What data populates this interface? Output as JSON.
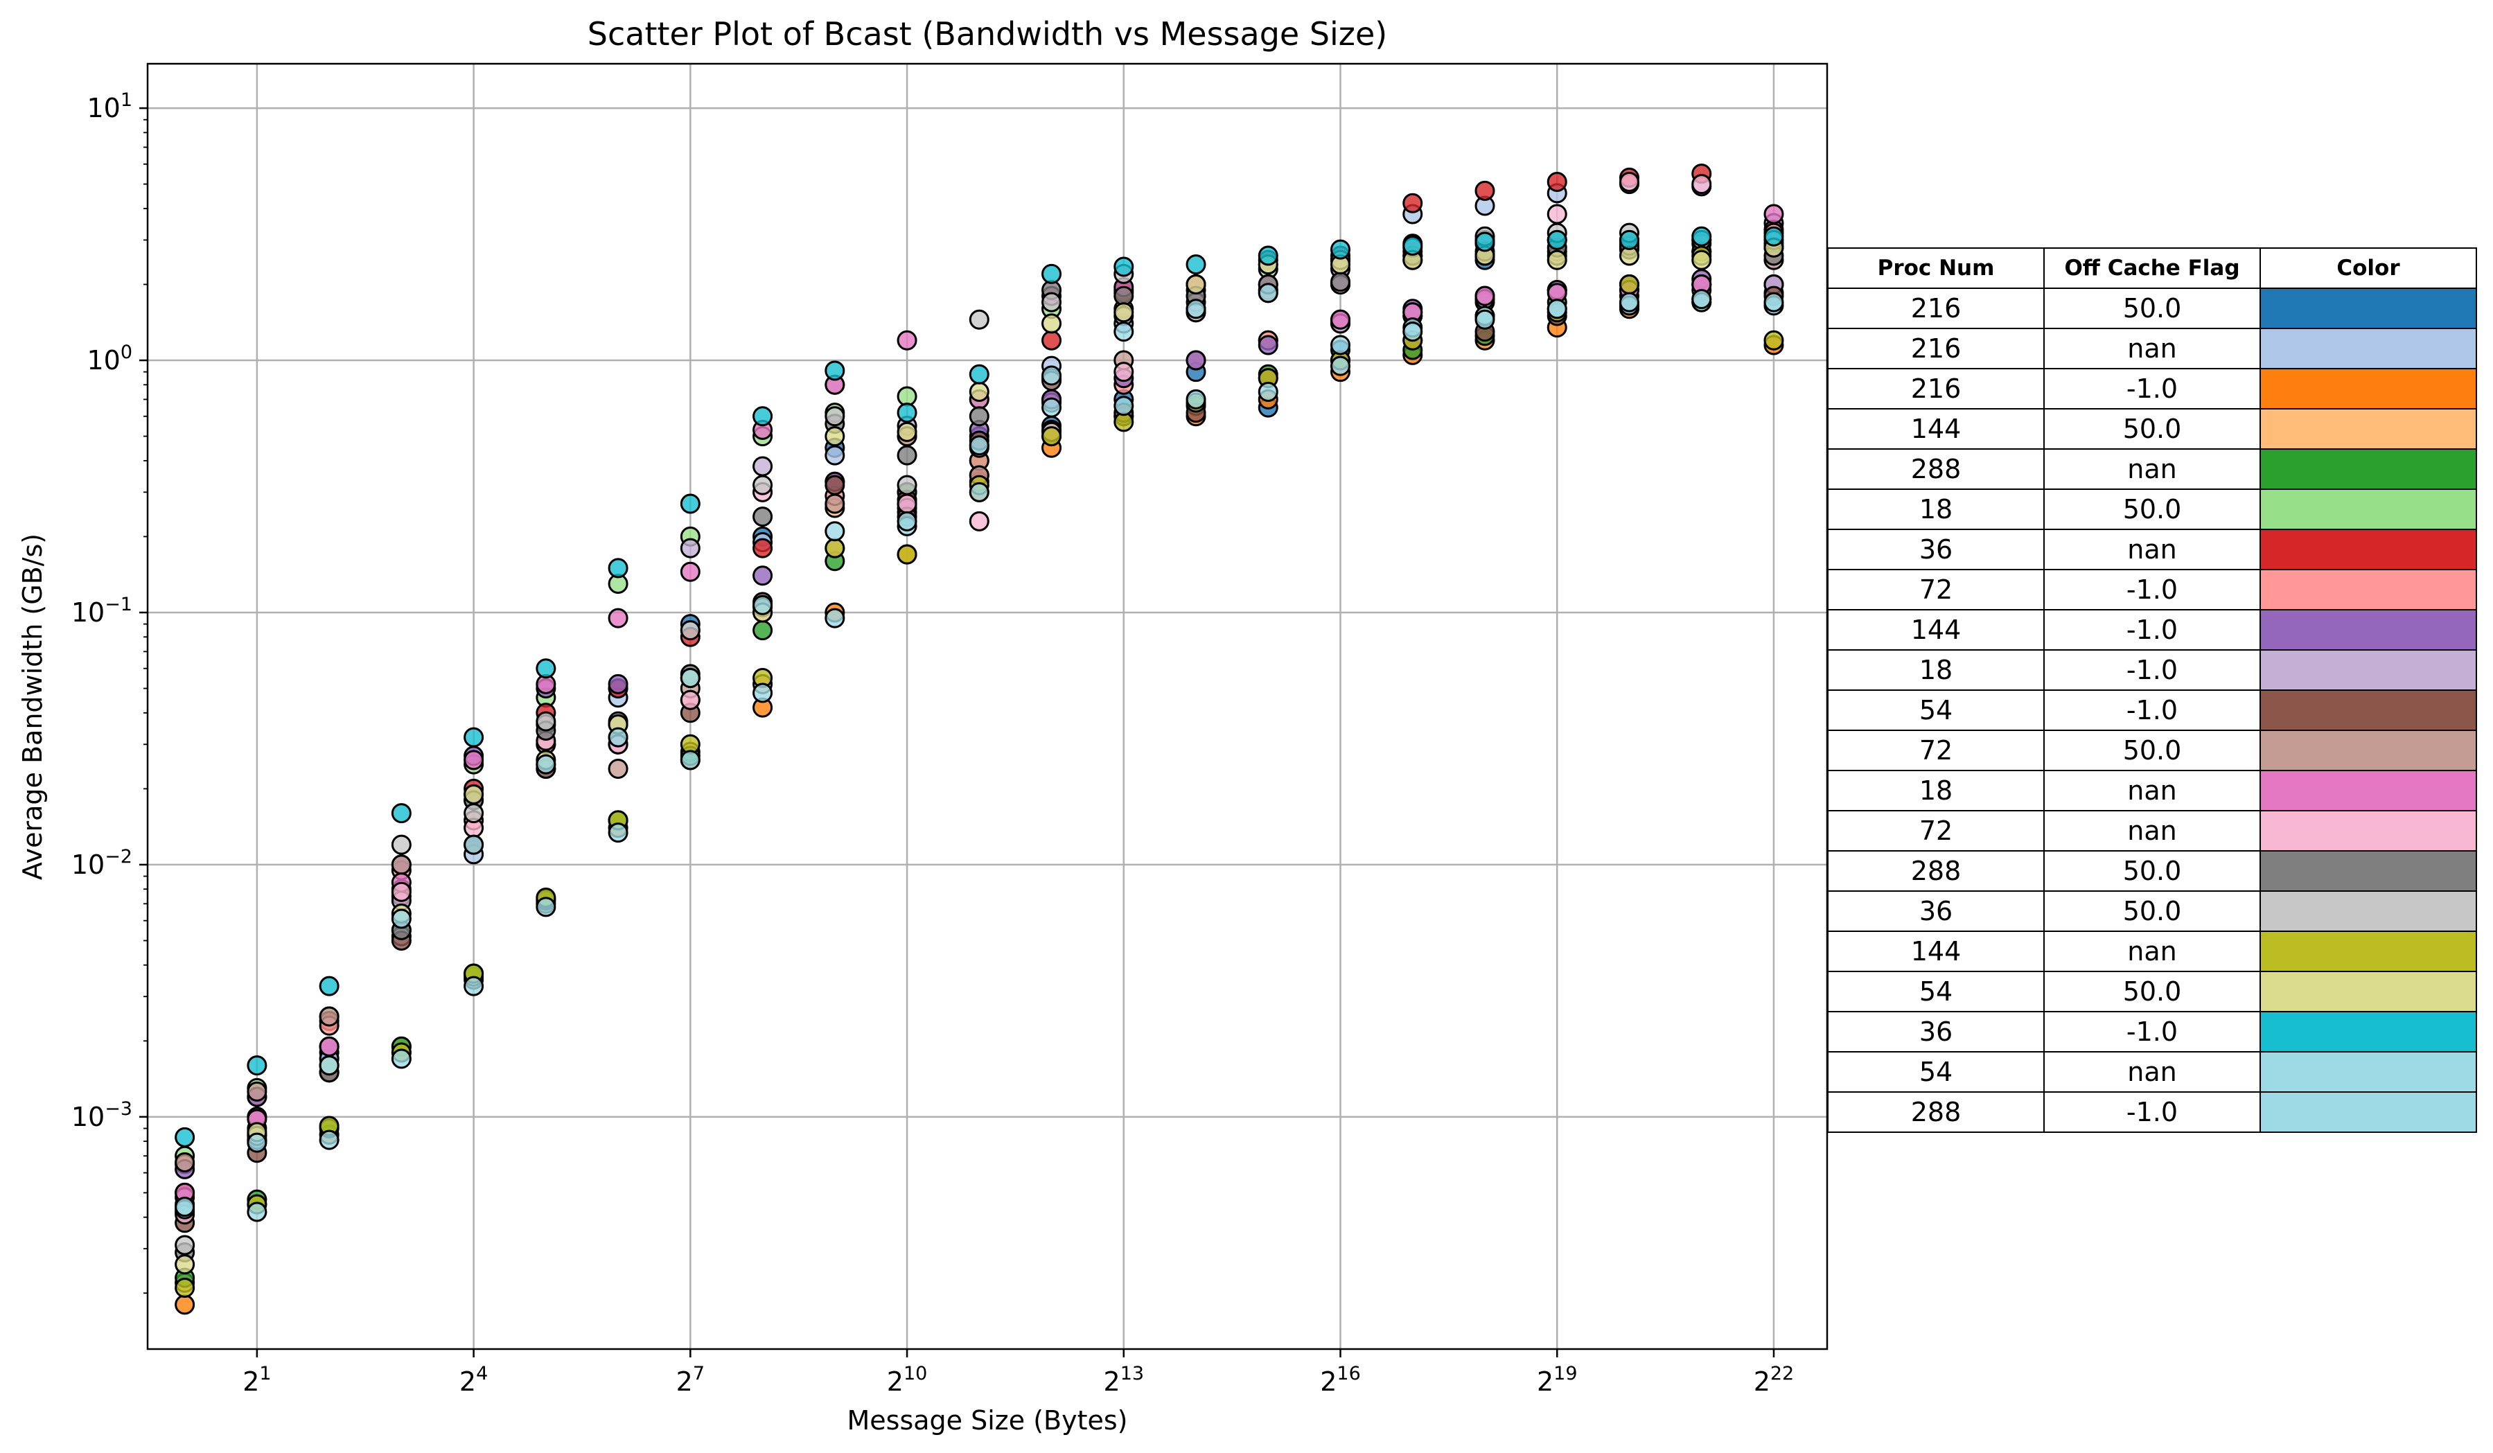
{
  "chart_data": {
    "type": "scatter",
    "title": "Scatter Plot of Bcast (Bandwidth vs Message Size)",
    "xlabel": "Message Size (Bytes)",
    "ylabel": "Average Bandwidth (GB/s)",
    "xscale": "log2",
    "yscale": "log10",
    "xlim": [
      0.7,
      7000000
    ],
    "ylim": [
      0.00012,
      15
    ],
    "grid": true,
    "x_ticks": [
      {
        "value": 2,
        "base": "2",
        "exp": "1"
      },
      {
        "value": 16,
        "base": "2",
        "exp": "4"
      },
      {
        "value": 128,
        "base": "2",
        "exp": "7"
      },
      {
        "value": 1024,
        "base": "2",
        "exp": "10"
      },
      {
        "value": 8192,
        "base": "2",
        "exp": "13"
      },
      {
        "value": 65536,
        "base": "2",
        "exp": "16"
      },
      {
        "value": 524288,
        "base": "2",
        "exp": "19"
      },
      {
        "value": 4194304,
        "base": "2",
        "exp": "22"
      }
    ],
    "y_ticks": [
      {
        "value": 0.001,
        "base": "10",
        "exp": "−3"
      },
      {
        "value": 0.01,
        "base": "10",
        "exp": "−2"
      },
      {
        "value": 0.1,
        "base": "10",
        "exp": "−1"
      },
      {
        "value": 1,
        "base": "10",
        "exp": "0"
      },
      {
        "value": 10,
        "base": "10",
        "exp": "1"
      }
    ],
    "x": [
      1,
      2,
      4,
      8,
      16,
      32,
      64,
      128,
      256,
      512,
      1024,
      2048,
      4096,
      8192,
      16384,
      32768,
      65536,
      131072,
      262144,
      524288,
      1048576,
      2097152,
      4194304
    ],
    "legend_placement": "right-table",
    "series": [
      {
        "name": "216 / 50.0",
        "color": "#1f77b4",
        "y": [
          0.00045,
          0.0009,
          0.0018,
          0.0055,
          0.012,
          0.025,
          0.05,
          0.09,
          0.2,
          0.45,
          0.25,
          0.5,
          0.55,
          0.7,
          0.9,
          0.65,
          1.1,
          1.5,
          2.5,
          3.0,
          2.9,
          3.0,
          2.8
        ]
      },
      {
        "name": "216 / nan",
        "color": "#aec7e8",
        "y": [
          0.00042,
          0.00085,
          0.0017,
          0.0052,
          0.011,
          0.024,
          0.046,
          0.085,
          0.19,
          0.42,
          0.3,
          0.46,
          0.95,
          1.4,
          1.8,
          1.9,
          2.0,
          3.8,
          4.1,
          4.6,
          5.0,
          4.9,
          3.5
        ]
      },
      {
        "name": "216 / -1.0",
        "color": "#ff7f0e",
        "y": [
          0.00018,
          0.00045,
          0.00085,
          0.0018,
          0.0035,
          0.007,
          0.014,
          0.026,
          0.042,
          0.1,
          0.17,
          0.3,
          0.45,
          0.6,
          0.6,
          0.7,
          0.9,
          1.05,
          1.2,
          1.35,
          1.6,
          1.7,
          1.15
        ]
      },
      {
        "name": "144 / 50.0",
        "color": "#ffbb78",
        "y": [
          0.00022,
          0.0008,
          0.0015,
          0.0019,
          0.0036,
          0.0072,
          0.015,
          0.028,
          0.052,
          0.26,
          0.5,
          0.33,
          0.7,
          1.6,
          2.0,
          1.2,
          2.5,
          2.6,
          2.6,
          2.7,
          2.8,
          2.7,
          2.8
        ]
      },
      {
        "name": "288 / nan",
        "color": "#2ca02c",
        "y": [
          0.00023,
          0.00047,
          0.0009,
          0.0019,
          0.0037,
          0.0073,
          0.015,
          0.027,
          0.085,
          0.16,
          0.3,
          0.4,
          0.53,
          0.6,
          0.66,
          0.88,
          1.0,
          1.1,
          1.25,
          1.7,
          1.8,
          1.9,
          1.85
        ]
      },
      {
        "name": "18 / 50.0",
        "color": "#98df8a",
        "y": [
          0.0007,
          0.0013,
          0.0025,
          0.008,
          0.025,
          0.046,
          0.13,
          0.2,
          0.5,
          0.62,
          0.72,
          0.7,
          1.6,
          1.9,
          1.9,
          2.3,
          2.5,
          2.7,
          2.9,
          3.0,
          3.0,
          2.9,
          2.9
        ]
      },
      {
        "name": "36 / nan",
        "color": "#d62728",
        "y": [
          0.0005,
          0.001,
          0.0024,
          0.0075,
          0.02,
          0.04,
          0.05,
          0.08,
          0.18,
          0.33,
          0.28,
          0.35,
          1.2,
          1.85,
          2.0,
          2.5,
          2.6,
          4.2,
          4.7,
          5.1,
          5.3,
          5.5,
          3.3
        ]
      },
      {
        "name": "72 / -1.0",
        "color": "#ff9896",
        "y": [
          0.00065,
          0.0012,
          0.0023,
          0.0095,
          0.015,
          0.03,
          0.03,
          0.045,
          0.1,
          0.29,
          0.27,
          0.4,
          0.68,
          0.8,
          1.0,
          1.2,
          1.4,
          1.5,
          1.7,
          1.9,
          2.0,
          2.0,
          2.0
        ]
      },
      {
        "name": "144 / -1.0",
        "color": "#9467bd",
        "y": [
          0.00062,
          0.0012,
          0.0019,
          0.01,
          0.027,
          0.05,
          0.052,
          0.055,
          0.14,
          0.33,
          0.26,
          0.53,
          0.7,
          0.85,
          1.0,
          1.15,
          1.45,
          1.6,
          1.8,
          1.9,
          2.0,
          2.1,
          2.0
        ]
      },
      {
        "name": "18 / -1.0",
        "color": "#c5b0d5",
        "y": [
          0.00048,
          0.001,
          0.0019,
          0.0072,
          0.018,
          0.036,
          0.03,
          0.18,
          0.38,
          0.8,
          0.55,
          0.45,
          0.85,
          1.5,
          1.6,
          1.9,
          1.4,
          1.55,
          1.75,
          1.9,
          1.9,
          2.0,
          2.0
        ]
      },
      {
        "name": "54 / -1.0",
        "color": "#8c564b",
        "y": [
          0.00038,
          0.00072,
          0.0015,
          0.005,
          0.012,
          0.024,
          0.032,
          0.04,
          0.11,
          0.32,
          0.24,
          0.48,
          0.5,
          0.62,
          0.62,
          0.85,
          1.0,
          1.2,
          1.3,
          1.5,
          1.65,
          1.75,
          1.8
        ]
      },
      {
        "name": "72 / 50.0",
        "color": "#c49c94",
        "y": [
          0.00066,
          0.00126,
          0.0025,
          0.01,
          0.019,
          0.03,
          0.024,
          0.05,
          0.105,
          0.27,
          0.5,
          0.35,
          0.83,
          1.0,
          1.55,
          1.85,
          2.3,
          2.5,
          2.6,
          2.6,
          2.75,
          2.7,
          2.5
        ]
      },
      {
        "name": "18 / nan",
        "color": "#e377c2",
        "y": [
          0.0005,
          0.00098,
          0.0019,
          0.0085,
          0.026,
          0.052,
          0.095,
          0.145,
          0.53,
          0.8,
          1.2,
          0.7,
          1.8,
          1.95,
          2.0,
          2.0,
          1.45,
          1.55,
          1.8,
          1.85,
          1.9,
          2.0,
          3.8
        ]
      },
      {
        "name": "72 / nan",
        "color": "#f7b6d2",
        "y": [
          0.00041,
          0.00081,
          0.0016,
          0.0078,
          0.014,
          0.031,
          0.03,
          0.045,
          0.3,
          0.18,
          0.27,
          0.23,
          0.52,
          0.9,
          1.7,
          2.0,
          2.0,
          2.9,
          3.0,
          3.8,
          5.1,
          5.0,
          3.2
        ]
      },
      {
        "name": "288 / 50.0",
        "color": "#7f7f7f",
        "y": [
          0.00029,
          0.00081,
          0.0015,
          0.0055,
          0.018,
          0.034,
          0.037,
          0.057,
          0.24,
          0.56,
          0.42,
          0.6,
          1.9,
          1.8,
          1.8,
          2.0,
          2.05,
          2.6,
          2.7,
          2.8,
          2.85,
          2.7,
          2.6
        ]
      },
      {
        "name": "36 / 50.0",
        "color": "#c7c7c7",
        "y": [
          0.00031,
          0.00084,
          0.0016,
          0.012,
          0.016,
          0.037,
          0.036,
          0.085,
          0.32,
          0.6,
          0.32,
          1.45,
          1.7,
          2.2,
          1.55,
          2.4,
          2.5,
          2.8,
          3.1,
          3.2,
          3.2,
          3.0,
          3.0
        ]
      },
      {
        "name": "144 / nan",
        "color": "#bcbd22",
        "y": [
          0.00021,
          0.00045,
          0.00092,
          0.0018,
          0.0037,
          0.0074,
          0.015,
          0.03,
          0.055,
          0.18,
          0.17,
          0.32,
          0.5,
          0.57,
          0.68,
          0.85,
          1.0,
          1.2,
          1.5,
          1.55,
          2.0,
          2.6,
          1.2
        ]
      },
      {
        "name": "54 / 50.0",
        "color": "#dbdb8d",
        "y": [
          0.00026,
          0.00087,
          0.0016,
          0.0064,
          0.019,
          0.026,
          0.036,
          0.055,
          0.1,
          0.5,
          0.52,
          0.75,
          1.4,
          1.55,
          2.0,
          2.4,
          2.4,
          2.5,
          2.6,
          2.5,
          2.6,
          2.5,
          2.8
        ]
      },
      {
        "name": "36 / -1.0",
        "color": "#17becf",
        "y": [
          0.00083,
          0.0016,
          0.0033,
          0.016,
          0.032,
          0.06,
          0.15,
          0.27,
          0.6,
          0.91,
          0.62,
          0.88,
          2.2,
          2.35,
          2.4,
          2.6,
          2.75,
          2.85,
          2.95,
          3.0,
          3.0,
          3.1,
          3.1
        ]
      },
      {
        "name": "54 / nan",
        "color": "#9edae5",
        "y": [
          0.00043,
          0.00079,
          0.0016,
          0.0061,
          0.012,
          0.025,
          0.032,
          0.055,
          0.107,
          0.21,
          0.22,
          0.46,
          0.87,
          1.3,
          1.6,
          1.85,
          1.15,
          1.35,
          1.5,
          1.6,
          1.65,
          1.7,
          1.65
        ]
      },
      {
        "name": "288 / -1.0",
        "color": "#9edae5",
        "y": [
          0.00044,
          0.00042,
          0.00081,
          0.0017,
          0.0033,
          0.0068,
          0.0134,
          0.026,
          0.048,
          0.095,
          0.23,
          0.3,
          0.65,
          0.66,
          0.7,
          0.75,
          0.95,
          1.3,
          1.45,
          1.6,
          1.7,
          1.75,
          1.7
        ]
      }
    ]
  },
  "legend_table": {
    "headers": [
      "Proc Num",
      "Off Cache Flag",
      "Color"
    ],
    "rows": [
      {
        "proc": "216",
        "flag": "50.0",
        "color": "#1f77b4"
      },
      {
        "proc": "216",
        "flag": "nan",
        "color": "#aec7e8"
      },
      {
        "proc": "216",
        "flag": "-1.0",
        "color": "#ff7f0e"
      },
      {
        "proc": "144",
        "flag": "50.0",
        "color": "#ffbb78"
      },
      {
        "proc": "288",
        "flag": "nan",
        "color": "#2ca02c"
      },
      {
        "proc": "18",
        "flag": "50.0",
        "color": "#98df8a"
      },
      {
        "proc": "36",
        "flag": "nan",
        "color": "#d62728"
      },
      {
        "proc": "72",
        "flag": "-1.0",
        "color": "#ff9896"
      },
      {
        "proc": "144",
        "flag": "-1.0",
        "color": "#9467bd"
      },
      {
        "proc": "18",
        "flag": "-1.0",
        "color": "#c5b0d5"
      },
      {
        "proc": "54",
        "flag": "-1.0",
        "color": "#8c564b"
      },
      {
        "proc": "72",
        "flag": "50.0",
        "color": "#c49c94"
      },
      {
        "proc": "18",
        "flag": "nan",
        "color": "#e377c2"
      },
      {
        "proc": "72",
        "flag": "nan",
        "color": "#f7b6d2"
      },
      {
        "proc": "288",
        "flag": "50.0",
        "color": "#7f7f7f"
      },
      {
        "proc": "36",
        "flag": "50.0",
        "color": "#c7c7c7"
      },
      {
        "proc": "144",
        "flag": "nan",
        "color": "#bcbd22"
      },
      {
        "proc": "54",
        "flag": "50.0",
        "color": "#dbdb8d"
      },
      {
        "proc": "36",
        "flag": "-1.0",
        "color": "#17becf"
      },
      {
        "proc": "54",
        "flag": "nan",
        "color": "#9edae5"
      },
      {
        "proc": "288",
        "flag": "-1.0",
        "color": "#9edae5"
      }
    ]
  }
}
